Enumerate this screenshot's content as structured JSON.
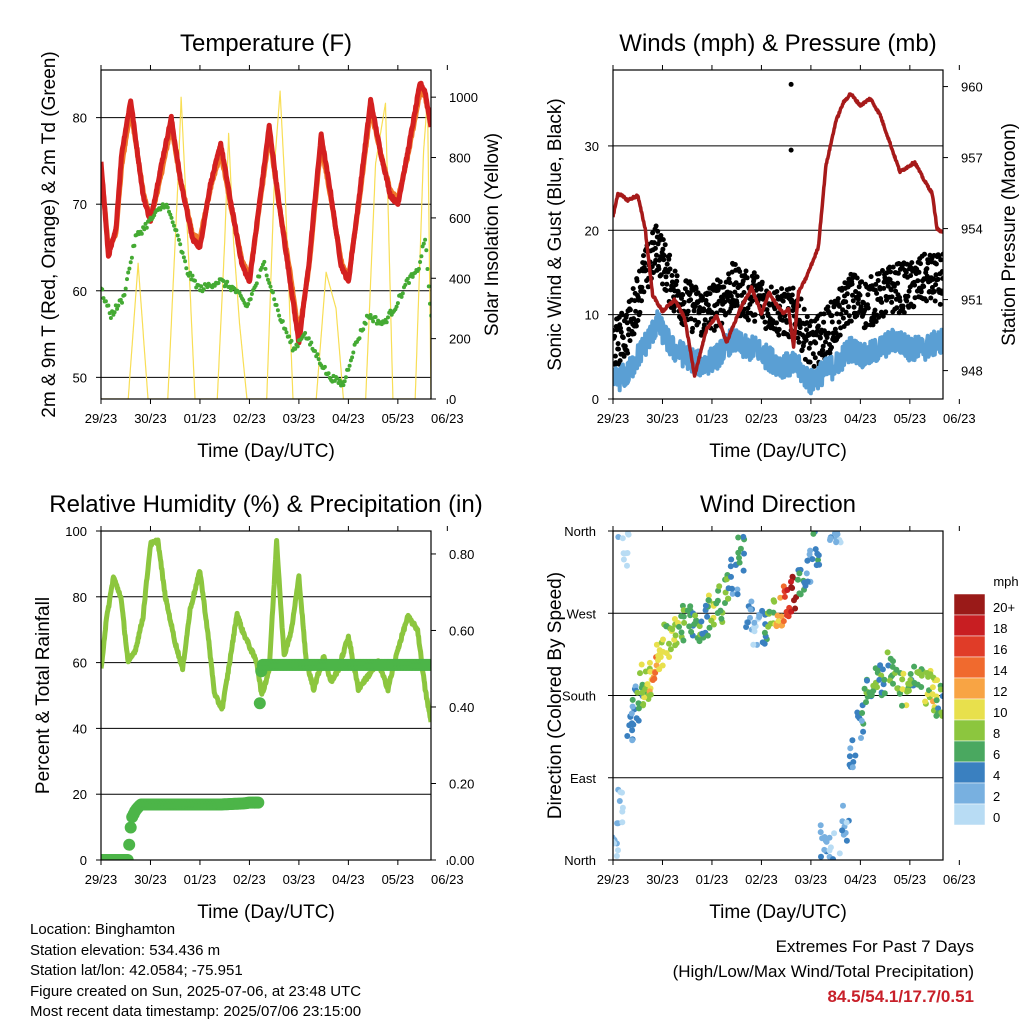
{
  "x_ticks": [
    "29/23",
    "30/23",
    "01/23",
    "02/23",
    "03/23",
    "04/23",
    "05/23",
    "06/23"
  ],
  "colors": {
    "temp_red": "#d42020",
    "temp_orange": "#f07828",
    "dewpoint_green": "#44aa33",
    "solar_yellow": "#f8de55",
    "wind_blue": "#5a9fd4",
    "gust_black": "#000000",
    "pressure_maroon": "#a61a1a",
    "rh_green": "#8cc63e",
    "precip_green": "#4cb548",
    "extremes_red": "#c8202a"
  },
  "chart_data": [
    {
      "type": "line",
      "title": "Temperature (F)",
      "xlabel": "Time (Day/UTC)",
      "ylabel": "2m & 9m T (Red, Orange) & 2m Td (Green)",
      "y2label": "Solar Insolation (Yellow)",
      "ylim": [
        47.5,
        85.5
      ],
      "y2lim": [
        0,
        1090
      ],
      "yticks": [
        50,
        60,
        70,
        80
      ],
      "y2ticks": [
        0,
        200,
        400,
        600,
        800,
        1000
      ],
      "grid": true,
      "series": [
        {
          "name": "2m T",
          "color": "#d42020",
          "x": [
            0,
            0.15,
            0.3,
            0.42,
            0.6,
            0.85,
            1,
            1.2,
            1.42,
            1.6,
            1.85,
            2,
            2.2,
            2.42,
            2.6,
            2.85,
            3.0,
            3.2,
            3.4,
            3.6,
            3.8,
            4.0,
            4.2,
            4.45,
            4.65,
            4.85,
            5,
            5.2,
            5.45,
            5.65,
            5.85,
            6,
            6.2,
            6.45,
            6.55,
            6.67
          ],
          "y": [
            75,
            64,
            67,
            76,
            82,
            71,
            68,
            74,
            80,
            73,
            66,
            65,
            72,
            77,
            71,
            63,
            61,
            70,
            79,
            70,
            62,
            54,
            63,
            78,
            71,
            63,
            61,
            70,
            82,
            76,
            71,
            70,
            76,
            84,
            83,
            79
          ]
        },
        {
          "name": "9m T",
          "color": "#f07828",
          "x": [
            0,
            0.15,
            0.3,
            0.42,
            0.6,
            0.85,
            1,
            1.2,
            1.42,
            1.6,
            1.85,
            2,
            2.2,
            2.42,
            2.6,
            2.85,
            3.0,
            3.2,
            3.4,
            3.6,
            3.8,
            4.0,
            4.2,
            4.45,
            4.65,
            4.85,
            5,
            5.2,
            5.45,
            5.65,
            5.85,
            6,
            6.2,
            6.45,
            6.55,
            6.67
          ],
          "y": [
            74,
            65,
            66.5,
            74.5,
            81,
            71.5,
            68,
            73,
            79,
            73,
            66.5,
            66,
            71.5,
            76,
            70.5,
            63.5,
            61.5,
            69.5,
            78,
            70,
            63,
            55,
            62.5,
            77,
            70.5,
            63.5,
            61.5,
            69.5,
            81,
            76,
            71.5,
            70.5,
            75.5,
            83,
            82.5,
            79
          ]
        },
        {
          "name": "2m Td",
          "color": "#44aa33",
          "x": [
            0,
            0.2,
            0.45,
            0.7,
            1,
            1.3,
            1.5,
            1.75,
            2,
            2.4,
            2.7,
            2.95,
            3.3,
            3.6,
            3.9,
            4.1,
            4.4,
            4.6,
            4.9,
            5.1,
            5.4,
            5.7,
            5.95,
            6.2,
            6.4,
            6.55,
            6.67
          ],
          "y": [
            60,
            57,
            59,
            66,
            68,
            70,
            67,
            62,
            60,
            61,
            60,
            58,
            63,
            57,
            53,
            55,
            52,
            50,
            49,
            53,
            57,
            56,
            58,
            61,
            62,
            66,
            57
          ]
        },
        {
          "name": "Solar Insolation",
          "color": "#f8de55",
          "axis": "y2",
          "x": [
            0,
            0.55,
            0.75,
            0.95,
            1.35,
            1.55,
            1.62,
            1.72,
            1.9,
            2.35,
            2.5,
            2.58,
            2.68,
            2.8,
            2.95,
            3.35,
            3.52,
            3.62,
            3.72,
            3.88,
            4.35,
            4.55,
            4.75,
            4.9,
            5.35,
            5.55,
            5.75,
            5.9,
            6.35,
            6.52,
            6.6,
            6.67
          ],
          "y": [
            0,
            0,
            450,
            0,
            0,
            700,
            1000,
            650,
            0,
            0,
            520,
            880,
            520,
            250,
            0,
            0,
            800,
            1020,
            700,
            0,
            0,
            420,
            300,
            0,
            0,
            780,
            980,
            0,
            0,
            820,
            1000,
            0
          ]
        }
      ]
    },
    {
      "type": "scatter",
      "title": "Winds (mph) & Pressure (mb)",
      "xlabel": "Time (Day/UTC)",
      "ylabel": "Sonic Wind & Gust (Blue, Black)",
      "y2label": "Station Pressure (Maroon)",
      "ylim": [
        0,
        39
      ],
      "y2lim": [
        946.8,
        960.7
      ],
      "yticks": [
        0,
        10,
        20,
        30
      ],
      "y2ticks": [
        948,
        951,
        954,
        957,
        960
      ],
      "grid": true,
      "series": [
        {
          "name": "Sonic Wind",
          "color": "#5a9fd4",
          "x": [
            0,
            0.3,
            0.6,
            0.9,
            1.2,
            1.5,
            1.8,
            2.1,
            2.4,
            2.7,
            2.9,
            3.1,
            3.4,
            3.7,
            4.0,
            4.2,
            4.5,
            4.8,
            5.1,
            5.4,
            5.7,
            6.0,
            6.3,
            6.67
          ],
          "y": [
            2,
            3,
            6,
            9,
            6,
            5,
            4,
            5,
            7,
            6,
            6,
            5,
            4,
            4,
            2,
            3,
            4,
            6,
            5,
            6,
            7,
            6,
            6,
            7
          ]
        },
        {
          "name": "Gust",
          "color": "#000000",
          "x": [
            0,
            0.3,
            0.6,
            0.9,
            1.2,
            1.5,
            1.8,
            2.1,
            2.4,
            2.7,
            2.9,
            3.1,
            3.4,
            3.7,
            4.0,
            4.2,
            4.5,
            4.8,
            5.1,
            5.4,
            5.7,
            6.0,
            6.3,
            6.67
          ],
          "y": [
            5,
            7,
            13,
            17,
            12,
            10,
            9,
            10,
            12,
            11,
            11,
            10,
            9,
            9,
            5,
            6,
            8,
            11,
            10,
            11,
            12,
            12,
            13,
            13
          ]
        },
        {
          "name": "Gust outliers",
          "color": "#000000",
          "x": [
            3.6,
            3.6
          ],
          "y": [
            37.3,
            29.5
          ]
        },
        {
          "name": "Station Pressure",
          "color": "#a61a1a",
          "axis": "y2",
          "x": [
            0,
            0.1,
            0.3,
            0.5,
            0.65,
            0.8,
            1.0,
            1.25,
            1.45,
            1.65,
            1.9,
            2.1,
            2.3,
            2.55,
            2.8,
            3.0,
            3.15,
            3.3,
            3.45,
            3.55,
            3.65,
            3.75,
            3.9,
            4.15,
            4.3,
            4.5,
            4.65,
            4.8,
            5.0,
            5.2,
            5.4,
            5.6,
            5.8,
            6.1,
            6.3,
            6.45,
            6.55,
            6.67
          ],
          "y": [
            954.5,
            955.5,
            955.2,
            955.4,
            954.0,
            951.2,
            950.5,
            951.0,
            950.2,
            947.8,
            949.8,
            950.3,
            949.2,
            950.5,
            951.5,
            950.4,
            951.3,
            950.8,
            950.4,
            950.6,
            949.0,
            951.3,
            951.9,
            953.2,
            956.6,
            958.5,
            959.3,
            959.7,
            959.2,
            959.5,
            958.8,
            957.6,
            956.4,
            956.8,
            956.0,
            955.5,
            954.0,
            953.8
          ]
        }
      ]
    },
    {
      "type": "line",
      "title": "Relative Humidity (%) & Precipitation (in)",
      "xlabel": "Time (Day/UTC)",
      "ylabel": "Percent & Total Rainfall",
      "ylim": [
        0,
        100
      ],
      "y2lim": [
        0,
        0.86
      ],
      "yticks": [
        0,
        20,
        40,
        60,
        80,
        100
      ],
      "y2ticks": [
        0.0,
        0.2,
        0.4,
        0.6,
        0.8
      ],
      "grid": true,
      "series": [
        {
          "name": "Relative Humidity",
          "color": "#8cc63e",
          "x": [
            0,
            0.1,
            0.25,
            0.4,
            0.55,
            0.7,
            0.85,
            1.0,
            1.15,
            1.3,
            1.5,
            1.65,
            1.8,
            2.0,
            2.15,
            2.3,
            2.45,
            2.6,
            2.75,
            2.85,
            3.0,
            3.15,
            3.25,
            3.4,
            3.55,
            3.7,
            3.85,
            4.0,
            4.15,
            4.3,
            4.5,
            4.65,
            4.8,
            5.0,
            5.2,
            5.4,
            5.6,
            5.8,
            6.0,
            6.2,
            6.4,
            6.55,
            6.67
          ],
          "y": [
            58,
            72,
            86,
            80,
            60,
            64,
            74,
            96,
            97,
            80,
            66,
            58,
            76,
            88,
            70,
            50,
            46,
            60,
            75,
            70,
            65,
            60,
            50,
            58,
            97,
            62,
            70,
            86,
            60,
            52,
            62,
            54,
            58,
            68,
            52,
            56,
            60,
            52,
            64,
            74,
            70,
            52,
            42
          ]
        },
        {
          "name": "Total Rainfall",
          "color": "#4cb548",
          "axis": "y2",
          "x": [
            0,
            0.4,
            0.55,
            0.58,
            0.62,
            0.7,
            0.8,
            1.2,
            1.8,
            2.4,
            2.9,
            3.0,
            3.18,
            3.19,
            3.2,
            3.22,
            3.25,
            4.0,
            5.0,
            6.0,
            6.67
          ],
          "y": [
            0,
            0,
            0,
            0.06,
            0.11,
            0.13,
            0.145,
            0.145,
            0.145,
            0.145,
            0.148,
            0.15,
            0.15,
            0.21,
            0.36,
            0.46,
            0.51,
            0.51,
            0.51,
            0.51,
            0.51
          ]
        }
      ]
    },
    {
      "type": "scatter",
      "title": "Wind Direction",
      "xlabel": "Time (Day/UTC)",
      "ylabel": "Direction (Colored By Speed)",
      "yticks": [
        "North",
        "East",
        "South",
        "West",
        "North"
      ],
      "ylim": [
        0,
        360
      ],
      "grid": true,
      "x": [
        0.05,
        0.15,
        0.25,
        0.35,
        0.45,
        0.55,
        0.65,
        0.75,
        0.85,
        0.95,
        1.1,
        1.25,
        1.4,
        1.55,
        1.7,
        1.85,
        2.0,
        2.15,
        2.3,
        2.45,
        2.6,
        2.75,
        2.9,
        3.05,
        3.2,
        3.35,
        3.5,
        3.65,
        3.8,
        3.95,
        4.1,
        4.25,
        4.4,
        4.55,
        4.7,
        4.85,
        5.0,
        5.15,
        5.3,
        5.45,
        5.6,
        5.75,
        5.9,
        6.05,
        6.2,
        6.35,
        6.5,
        6.6
      ],
      "y": [
        10,
        60,
        340,
        150,
        170,
        185,
        195,
        200,
        210,
        225,
        240,
        250,
        260,
        265,
        258,
        262,
        270,
        280,
        300,
        310,
        335,
        270,
        250,
        255,
        265,
        275,
        280,
        290,
        300,
        320,
        340,
        20,
        10,
        5,
        40,
        120,
        150,
        180,
        190,
        200,
        210,
        190,
        185,
        195,
        200,
        190,
        180,
        175
      ],
      "speed": [
        2,
        1,
        0,
        3,
        4,
        6,
        8,
        10,
        12,
        9,
        8,
        9,
        7,
        6,
        6,
        5,
        8,
        7,
        6,
        4,
        5,
        3,
        2,
        4,
        7,
        12,
        16,
        20,
        5,
        3,
        4,
        3,
        2,
        1,
        2,
        3,
        4,
        6,
        7,
        6,
        6,
        7,
        8,
        6,
        7,
        8,
        10,
        6
      ],
      "colorbar": {
        "title": "mph",
        "labels": [
          "20+",
          "18",
          "16",
          "14",
          "12",
          "10",
          "8",
          "6",
          "4",
          "2",
          "0"
        ],
        "colors": [
          "#9a1a18",
          "#c81e22",
          "#e03c28",
          "#f06a2e",
          "#f8a444",
          "#e8e04c",
          "#8cc63e",
          "#4aa860",
          "#3a80c0",
          "#78b0e0",
          "#b8dcf4"
        ]
      }
    }
  ],
  "footer": {
    "location": "Location: Binghamton",
    "elevation": "Station elevation: 534.436 m",
    "latlon": "Station lat/lon: 42.0584; -75.951",
    "created": "Figure created on Sun, 2025-07-06, at 23:48 UTC",
    "recent": "Most recent data timestamp: 2025/07/06 23:15:00"
  },
  "extremes": {
    "title": "Extremes For Past 7 Days",
    "subtitle": "(High/Low/Max Wind/Total Precipitation)",
    "values": "84.5/54.1/17.7/0.51"
  }
}
